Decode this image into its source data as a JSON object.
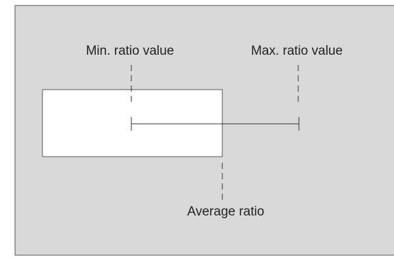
{
  "labels": {
    "min": "Min. ratio value",
    "max": "Max. ratio value",
    "average": "Average ratio"
  }
}
